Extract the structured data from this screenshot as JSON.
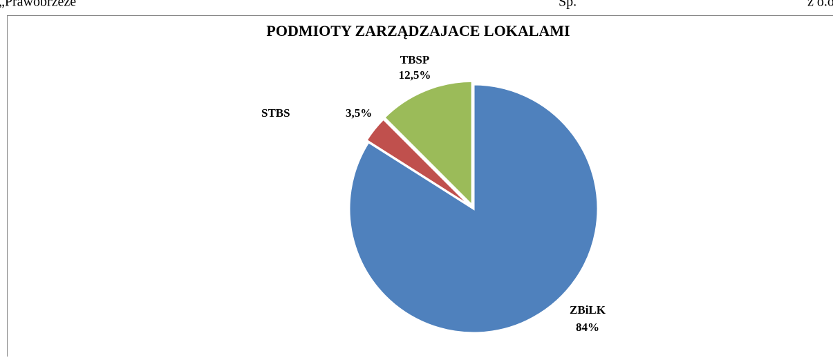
{
  "header": {
    "left": "„Prawobrzeże",
    "middle": "Sp.",
    "right": "z o.o"
  },
  "chart_data": {
    "type": "pie",
    "title": "PODMIOTY ZARZĄDZAJACE LOKALAMI",
    "categories": [
      "ZBiLK",
      "STBS",
      "TBSP"
    ],
    "values": [
      84,
      3.5,
      12.5
    ],
    "value_labels": [
      "84%",
      "3,5%",
      "12,5%"
    ],
    "colors": [
      "#4f81bd",
      "#c0504d",
      "#9bbb59"
    ]
  }
}
